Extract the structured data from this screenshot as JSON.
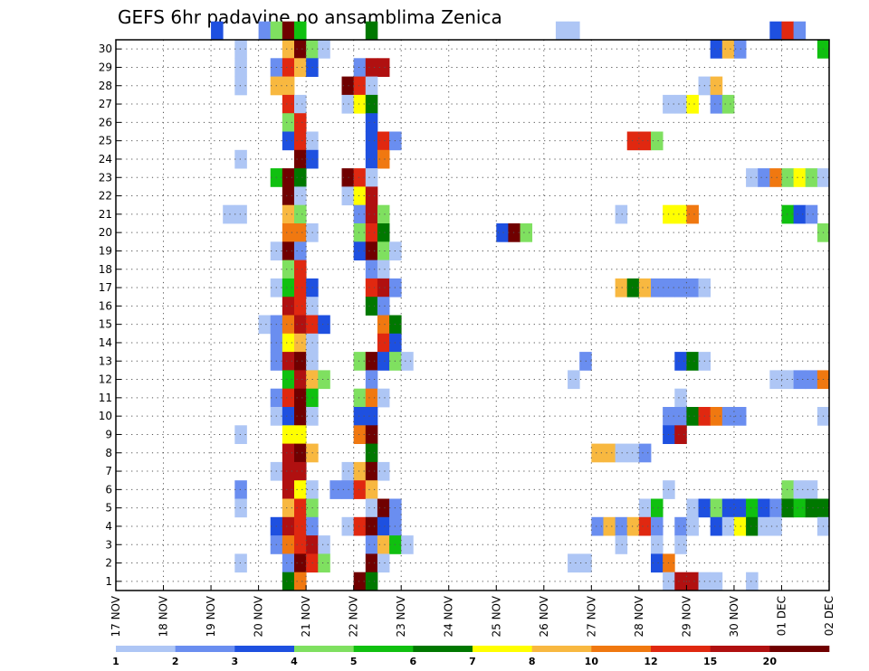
{
  "chart_data": {
    "type": "heatmap",
    "title": "GEFS 6hr padavine po ansamblima Zenica",
    "xlabel": "",
    "ylabel": "",
    "x_tick_labels": [
      "17 NOV",
      "18 NOV",
      "19 NOV",
      "20 NOV",
      "21 NOV",
      "22 NOV",
      "23 NOV",
      "24 NOV",
      "25 NOV",
      "26 NOV",
      "27 NOV",
      "28 NOV",
      "29 NOV",
      "30 NOV",
      "01 DEC",
      "02 DEC"
    ],
    "y_tick_labels": [
      "1",
      "2",
      "3",
      "4",
      "5",
      "6",
      "7",
      "8",
      "9",
      "10",
      "11",
      "12",
      "13",
      "14",
      "15",
      "16",
      "17",
      "18",
      "19",
      "20",
      "21",
      "22",
      "23",
      "24",
      "25",
      "26",
      "27",
      "28",
      "29",
      "30"
    ],
    "x_range": [
      0,
      60
    ],
    "y_range": [
      0,
      30
    ],
    "x_unit": "6-hour steps from 17 NOV 00Z",
    "grid": true,
    "legend_position": "bottom",
    "legend": {
      "labels": [
        "1",
        "2",
        "3",
        "4",
        "5",
        "6",
        "7",
        "8",
        "10",
        "12",
        "15",
        "20"
      ],
      "colors": [
        "#aec6f5",
        "#6a8ef0",
        "#1e50e0",
        "#7fe060",
        "#10c010",
        "#007800",
        "#ffff00",
        "#f8b840",
        "#f07810",
        "#e02810",
        "#b01010",
        "#700000"
      ]
    },
    "cells": [
      [
        8,
        30,
        2
      ],
      [
        12,
        30,
        1
      ],
      [
        13,
        30,
        3
      ],
      [
        14,
        30,
        11
      ],
      [
        15,
        30,
        4
      ],
      [
        21,
        30,
        5
      ],
      [
        37,
        30,
        0
      ],
      [
        38,
        30,
        0
      ],
      [
        55,
        30,
        2
      ],
      [
        56,
        30,
        9
      ],
      [
        57,
        30,
        1
      ],
      [
        10,
        29,
        0
      ],
      [
        14,
        29,
        7
      ],
      [
        15,
        29,
        11
      ],
      [
        16,
        29,
        3
      ],
      [
        17,
        29,
        0
      ],
      [
        50,
        29,
        2
      ],
      [
        51,
        29,
        7
      ],
      [
        52,
        29,
        1
      ],
      [
        59,
        29,
        4
      ],
      [
        10,
        28,
        0
      ],
      [
        13,
        28,
        1
      ],
      [
        14,
        28,
        9
      ],
      [
        15,
        28,
        7
      ],
      [
        16,
        28,
        2
      ],
      [
        20,
        28,
        1
      ],
      [
        21,
        28,
        10
      ],
      [
        22,
        28,
        10
      ],
      [
        10,
        27,
        0
      ],
      [
        13,
        27,
        7
      ],
      [
        14,
        27,
        7
      ],
      [
        19,
        27,
        11
      ],
      [
        20,
        27,
        9
      ],
      [
        21,
        27,
        0
      ],
      [
        49,
        27,
        0
      ],
      [
        50,
        27,
        7
      ],
      [
        14,
        26,
        9
      ],
      [
        15,
        26,
        0
      ],
      [
        19,
        26,
        0
      ],
      [
        20,
        26,
        6
      ],
      [
        21,
        26,
        5
      ],
      [
        46,
        26,
        0
      ],
      [
        47,
        26,
        0
      ],
      [
        48,
        26,
        6
      ],
      [
        50,
        26,
        1
      ],
      [
        51,
        26,
        3
      ],
      [
        14,
        25,
        3
      ],
      [
        15,
        25,
        9
      ],
      [
        21,
        25,
        2
      ],
      [
        14,
        24,
        2
      ],
      [
        15,
        24,
        9
      ],
      [
        16,
        24,
        0
      ],
      [
        21,
        24,
        2
      ],
      [
        22,
        24,
        9
      ],
      [
        23,
        24,
        1
      ],
      [
        43,
        24,
        9
      ],
      [
        44,
        24,
        9
      ],
      [
        45,
        24,
        3
      ],
      [
        10,
        23,
        0
      ],
      [
        15,
        23,
        11
      ],
      [
        16,
        23,
        2
      ],
      [
        21,
        23,
        2
      ],
      [
        22,
        23,
        8
      ],
      [
        13,
        22,
        4
      ],
      [
        14,
        22,
        11
      ],
      [
        15,
        22,
        5
      ],
      [
        19,
        22,
        11
      ],
      [
        20,
        22,
        9
      ],
      [
        21,
        22,
        0
      ],
      [
        53,
        22,
        0
      ],
      [
        54,
        22,
        1
      ],
      [
        55,
        22,
        8
      ],
      [
        56,
        22,
        3
      ],
      [
        57,
        22,
        6
      ],
      [
        58,
        22,
        3
      ],
      [
        59,
        22,
        0
      ],
      [
        14,
        21,
        11
      ],
      [
        15,
        21,
        0
      ],
      [
        19,
        21,
        0
      ],
      [
        20,
        21,
        6
      ],
      [
        21,
        21,
        10
      ],
      [
        9,
        20,
        0
      ],
      [
        10,
        20,
        0
      ],
      [
        14,
        20,
        7
      ],
      [
        15,
        20,
        3
      ],
      [
        20,
        20,
        1
      ],
      [
        21,
        20,
        10
      ],
      [
        22,
        20,
        3
      ],
      [
        42,
        20,
        0
      ],
      [
        46,
        20,
        6
      ],
      [
        47,
        20,
        6
      ],
      [
        48,
        20,
        8
      ],
      [
        56,
        20,
        4
      ],
      [
        57,
        20,
        2
      ],
      [
        58,
        20,
        1
      ],
      [
        14,
        19,
        8
      ],
      [
        15,
        19,
        8
      ],
      [
        16,
        19,
        0
      ],
      [
        20,
        19,
        3
      ],
      [
        21,
        19,
        9
      ],
      [
        22,
        19,
        5
      ],
      [
        32,
        19,
        2
      ],
      [
        33,
        19,
        11
      ],
      [
        34,
        19,
        3
      ],
      [
        59,
        19,
        3
      ],
      [
        13,
        18,
        0
      ],
      [
        14,
        18,
        11
      ],
      [
        15,
        18,
        1
      ],
      [
        20,
        18,
        2
      ],
      [
        21,
        18,
        11
      ],
      [
        22,
        18,
        3
      ],
      [
        23,
        18,
        0
      ],
      [
        14,
        17,
        3
      ],
      [
        15,
        17,
        9
      ],
      [
        21,
        17,
        1
      ],
      [
        22,
        17,
        0
      ],
      [
        13,
        16,
        0
      ],
      [
        14,
        16,
        4
      ],
      [
        15,
        16,
        9
      ],
      [
        16,
        16,
        2
      ],
      [
        21,
        16,
        9
      ],
      [
        22,
        16,
        10
      ],
      [
        23,
        16,
        1
      ],
      [
        42,
        16,
        7
      ],
      [
        43,
        16,
        5
      ],
      [
        44,
        16,
        7
      ],
      [
        45,
        16,
        1
      ],
      [
        46,
        16,
        1
      ],
      [
        47,
        16,
        1
      ],
      [
        48,
        16,
        1
      ],
      [
        49,
        16,
        0
      ],
      [
        14,
        15,
        10
      ],
      [
        15,
        15,
        9
      ],
      [
        16,
        15,
        0
      ],
      [
        21,
        15,
        5
      ],
      [
        22,
        15,
        1
      ],
      [
        12,
        14,
        0
      ],
      [
        13,
        14,
        1
      ],
      [
        14,
        14,
        8
      ],
      [
        15,
        14,
        10
      ],
      [
        16,
        14,
        9
      ],
      [
        17,
        14,
        2
      ],
      [
        22,
        14,
        8
      ],
      [
        23,
        14,
        5
      ],
      [
        13,
        13,
        1
      ],
      [
        14,
        13,
        6
      ],
      [
        15,
        13,
        7
      ],
      [
        16,
        13,
        0
      ],
      [
        22,
        13,
        9
      ],
      [
        23,
        13,
        2
      ],
      [
        13,
        12,
        1
      ],
      [
        14,
        12,
        10
      ],
      [
        15,
        12,
        11
      ],
      [
        16,
        12,
        0
      ],
      [
        20,
        12,
        3
      ],
      [
        21,
        12,
        11
      ],
      [
        22,
        12,
        2
      ],
      [
        23,
        12,
        3
      ],
      [
        24,
        12,
        0
      ],
      [
        39,
        12,
        1
      ],
      [
        47,
        12,
        2
      ],
      [
        48,
        12,
        5
      ],
      [
        49,
        12,
        0
      ],
      [
        14,
        11,
        4
      ],
      [
        15,
        11,
        10
      ],
      [
        16,
        11,
        7
      ],
      [
        17,
        11,
        3
      ],
      [
        21,
        11,
        1
      ],
      [
        38,
        11,
        0
      ],
      [
        55,
        11,
        0
      ],
      [
        56,
        11,
        0
      ],
      [
        57,
        11,
        1
      ],
      [
        58,
        11,
        1
      ],
      [
        59,
        11,
        8
      ],
      [
        13,
        10,
        1
      ],
      [
        14,
        10,
        9
      ],
      [
        15,
        10,
        11
      ],
      [
        16,
        10,
        4
      ],
      [
        20,
        10,
        3
      ],
      [
        21,
        10,
        8
      ],
      [
        22,
        10,
        0
      ],
      [
        47,
        10,
        0
      ],
      [
        13,
        9,
        0
      ],
      [
        14,
        9,
        2
      ],
      [
        15,
        9,
        11
      ],
      [
        16,
        9,
        0
      ],
      [
        20,
        9,
        2
      ],
      [
        21,
        9,
        2
      ],
      [
        46,
        9,
        1
      ],
      [
        47,
        9,
        1
      ],
      [
        48,
        9,
        5
      ],
      [
        49,
        9,
        9
      ],
      [
        50,
        9,
        8
      ],
      [
        51,
        9,
        1
      ],
      [
        52,
        9,
        1
      ],
      [
        59,
        9,
        0
      ],
      [
        10,
        8,
        0
      ],
      [
        14,
        8,
        6
      ],
      [
        15,
        8,
        6
      ],
      [
        20,
        8,
        8
      ],
      [
        21,
        8,
        11
      ],
      [
        46,
        8,
        2
      ],
      [
        47,
        8,
        10
      ],
      [
        14,
        7,
        10
      ],
      [
        15,
        7,
        11
      ],
      [
        16,
        7,
        7
      ],
      [
        21,
        7,
        5
      ],
      [
        40,
        7,
        7
      ],
      [
        41,
        7,
        7
      ],
      [
        42,
        7,
        0
      ],
      [
        43,
        7,
        0
      ],
      [
        44,
        7,
        1
      ],
      [
        13,
        6,
        0
      ],
      [
        14,
        6,
        10
      ],
      [
        15,
        6,
        10
      ],
      [
        19,
        6,
        0
      ],
      [
        20,
        6,
        7
      ],
      [
        21,
        6,
        11
      ],
      [
        22,
        6,
        0
      ],
      [
        10,
        5,
        1
      ],
      [
        14,
        5,
        10
      ],
      [
        15,
        5,
        6
      ],
      [
        16,
        5,
        0
      ],
      [
        18,
        5,
        1
      ],
      [
        19,
        5,
        1
      ],
      [
        20,
        5,
        9
      ],
      [
        21,
        5,
        7
      ],
      [
        46,
        5,
        0
      ],
      [
        56,
        5,
        3
      ],
      [
        57,
        5,
        0
      ],
      [
        58,
        5,
        0
      ],
      [
        10,
        4,
        0
      ],
      [
        14,
        4,
        7
      ],
      [
        15,
        4,
        9
      ],
      [
        16,
        4,
        3
      ],
      [
        21,
        4,
        0
      ],
      [
        22,
        4,
        11
      ],
      [
        23,
        4,
        1
      ],
      [
        44,
        4,
        0
      ],
      [
        45,
        4,
        4
      ],
      [
        48,
        4,
        0
      ],
      [
        49,
        4,
        2
      ],
      [
        50,
        4,
        3
      ],
      [
        51,
        4,
        2
      ],
      [
        52,
        4,
        2
      ],
      [
        53,
        4,
        4
      ],
      [
        54,
        4,
        2
      ],
      [
        55,
        4,
        1
      ],
      [
        56,
        4,
        5
      ],
      [
        57,
        4,
        4
      ],
      [
        58,
        4,
        5
      ],
      [
        59,
        4,
        5
      ],
      [
        13,
        3,
        2
      ],
      [
        14,
        3,
        10
      ],
      [
        15,
        3,
        9
      ],
      [
        16,
        3,
        1
      ],
      [
        19,
        3,
        0
      ],
      [
        20,
        3,
        9
      ],
      [
        21,
        3,
        11
      ],
      [
        22,
        3,
        2
      ],
      [
        23,
        3,
        1
      ],
      [
        40,
        3,
        1
      ],
      [
        41,
        3,
        7
      ],
      [
        42,
        3,
        1
      ],
      [
        43,
        3,
        7
      ],
      [
        44,
        3,
        9
      ],
      [
        45,
        3,
        1
      ],
      [
        47,
        3,
        1
      ],
      [
        48,
        3,
        0
      ],
      [
        50,
        3,
        2
      ],
      [
        51,
        3,
        0
      ],
      [
        52,
        3,
        6
      ],
      [
        53,
        3,
        5
      ],
      [
        54,
        3,
        0
      ],
      [
        55,
        3,
        0
      ],
      [
        59,
        3,
        0
      ],
      [
        13,
        2,
        1
      ],
      [
        14,
        2,
        8
      ],
      [
        15,
        2,
        9
      ],
      [
        16,
        2,
        10
      ],
      [
        17,
        2,
        0
      ],
      [
        21,
        2,
        1
      ],
      [
        22,
        2,
        7
      ],
      [
        23,
        2,
        4
      ],
      [
        24,
        2,
        0
      ],
      [
        42,
        2,
        0
      ],
      [
        45,
        2,
        0
      ],
      [
        47,
        2,
        0
      ],
      [
        10,
        1,
        0
      ],
      [
        14,
        1,
        1
      ],
      [
        15,
        1,
        11
      ],
      [
        16,
        1,
        9
      ],
      [
        17,
        1,
        3
      ],
      [
        21,
        1,
        11
      ],
      [
        22,
        1,
        0
      ],
      [
        38,
        1,
        0
      ],
      [
        39,
        1,
        0
      ],
      [
        45,
        1,
        2
      ],
      [
        46,
        1,
        8
      ],
      [
        14,
        0,
        5
      ],
      [
        15,
        0,
        8
      ],
      [
        20,
        0,
        11
      ],
      [
        21,
        0,
        5
      ],
      [
        46,
        0,
        0
      ],
      [
        47,
        0,
        10
      ],
      [
        48,
        0,
        10
      ],
      [
        49,
        0,
        0
      ],
      [
        50,
        0,
        0
      ],
      [
        53,
        0,
        0
      ]
    ]
  }
}
